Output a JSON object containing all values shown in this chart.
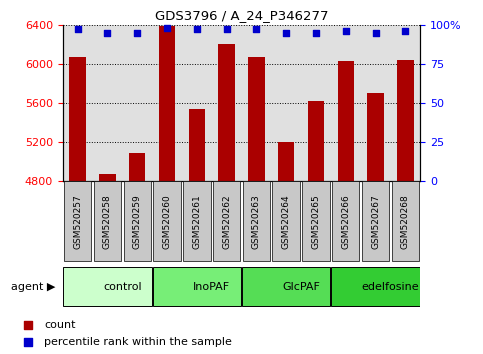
{
  "title": "GDS3796 / A_24_P346277",
  "samples": [
    "GSM520257",
    "GSM520258",
    "GSM520259",
    "GSM520260",
    "GSM520261",
    "GSM520262",
    "GSM520263",
    "GSM520264",
    "GSM520265",
    "GSM520266",
    "GSM520267",
    "GSM520268"
  ],
  "bar_values": [
    6070,
    4870,
    5080,
    6390,
    5540,
    6200,
    6070,
    5200,
    5620,
    6030,
    5700,
    6040
  ],
  "percentile_values": [
    97,
    95,
    95,
    98,
    97,
    97,
    97,
    95,
    95,
    96,
    95,
    96
  ],
  "bar_color": "#aa0000",
  "percentile_color": "#0000cc",
  "ylim_left": [
    4800,
    6400
  ],
  "ylim_right": [
    0,
    100
  ],
  "yticks_left": [
    4800,
    5200,
    5600,
    6000,
    6400
  ],
  "yticks_right": [
    0,
    25,
    50,
    75,
    100
  ],
  "agent_groups": [
    {
      "label": "control",
      "start": 0,
      "end": 3,
      "color": "#ccffcc"
    },
    {
      "label": "InoPAF",
      "start": 3,
      "end": 6,
      "color": "#77ee77"
    },
    {
      "label": "GlcPAF",
      "start": 6,
      "end": 9,
      "color": "#55dd55"
    },
    {
      "label": "edelfosine",
      "start": 9,
      "end": 12,
      "color": "#33cc33"
    }
  ],
  "legend_count_label": "count",
  "legend_percentile_label": "percentile rank within the sample",
  "plot_bg_color": "#e0e0e0",
  "xtick_bg_color": "#c8c8c8"
}
